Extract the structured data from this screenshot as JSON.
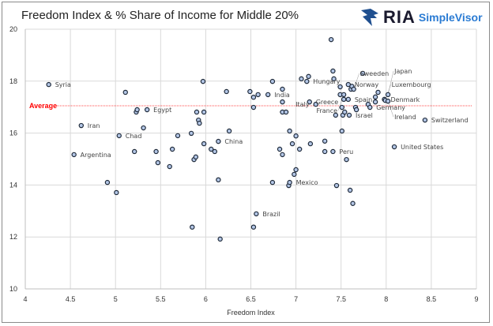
{
  "header": {
    "title": "Freedom Index & % Share of Income for Middle 20%",
    "logo_text": "RIA",
    "logo_sub": "SimpleVisor"
  },
  "chart_data": {
    "type": "scatter",
    "title": "Freedom Index & % Share of Income for Middle 20%",
    "xlabel": "Freedom Index",
    "ylabel": "",
    "xlim": [
      4,
      9
    ],
    "ylim": [
      10,
      20
    ],
    "xticks": [
      "4",
      "4.5",
      "5",
      "5.5",
      "6",
      "6.5",
      "7",
      "7.5",
      "8",
      "8.5",
      "9"
    ],
    "yticks": [
      "10",
      "12",
      "14",
      "16",
      "18",
      "20"
    ],
    "grid": true,
    "average": {
      "label": "Average",
      "value": 17.05,
      "color": "#ff0000"
    },
    "colors": {
      "point_fill": "#b4c7e7",
      "point_stroke": "#1f2a3a",
      "highlight": "#ff0000"
    },
    "points": [
      {
        "x": 4.26,
        "y": 17.87,
        "label": "Syria"
      },
      {
        "x": 4.54,
        "y": 15.17,
        "label": "Argentina"
      },
      {
        "x": 4.62,
        "y": 16.29,
        "label": "Iran"
      },
      {
        "x": 4.91,
        "y": 14.1
      },
      {
        "x": 5.01,
        "y": 13.71
      },
      {
        "x": 5.04,
        "y": 15.9,
        "label": "Chad"
      },
      {
        "x": 5.11,
        "y": 17.57
      },
      {
        "x": 5.21,
        "y": 15.29
      },
      {
        "x": 5.23,
        "y": 16.81
      },
      {
        "x": 5.24,
        "y": 16.9
      },
      {
        "x": 5.31,
        "y": 16.2
      },
      {
        "x": 5.35,
        "y": 16.9,
        "label": "Egypt"
      },
      {
        "x": 5.45,
        "y": 15.29
      },
      {
        "x": 5.47,
        "y": 14.86
      },
      {
        "x": 5.6,
        "y": 14.71
      },
      {
        "x": 5.63,
        "y": 15.38
      },
      {
        "x": 5.69,
        "y": 15.9
      },
      {
        "x": 5.84,
        "y": 15.99
      },
      {
        "x": 5.85,
        "y": 12.38
      },
      {
        "x": 5.87,
        "y": 14.98
      },
      {
        "x": 5.89,
        "y": 15.08
      },
      {
        "x": 5.9,
        "y": 16.81
      },
      {
        "x": 5.92,
        "y": 16.5
      },
      {
        "x": 5.93,
        "y": 16.38
      },
      {
        "x": 5.97,
        "y": 17.99
      },
      {
        "x": 5.98,
        "y": 16.81
      },
      {
        "x": 5.98,
        "y": 15.59
      },
      {
        "x": 6.06,
        "y": 15.38
      },
      {
        "x": 6.1,
        "y": 15.29
      },
      {
        "x": 6.14,
        "y": 15.68,
        "label": "China"
      },
      {
        "x": 6.14,
        "y": 14.2
      },
      {
        "x": 6.16,
        "y": 11.92
      },
      {
        "x": 6.23,
        "y": 17.6
      },
      {
        "x": 6.26,
        "y": 16.08
      },
      {
        "x": 6.49,
        "y": 17.6
      },
      {
        "x": 6.53,
        "y": 17.38
      },
      {
        "x": 6.53,
        "y": 16.99
      },
      {
        "x": 6.53,
        "y": 12.38
      },
      {
        "x": 6.56,
        "y": 12.89,
        "label": "Brazil"
      },
      {
        "x": 6.58,
        "y": 17.48
      },
      {
        "x": 6.69,
        "y": 17.48,
        "label": "India"
      },
      {
        "x": 6.74,
        "y": 17.99
      },
      {
        "x": 6.74,
        "y": 14.1
      },
      {
        "x": 6.82,
        "y": 15.38
      },
      {
        "x": 6.85,
        "y": 17.69
      },
      {
        "x": 6.85,
        "y": 17.2
      },
      {
        "x": 6.85,
        "y": 16.81
      },
      {
        "x": 6.85,
        "y": 15.17
      },
      {
        "x": 6.89,
        "y": 16.81
      },
      {
        "x": 6.92,
        "y": 13.98
      },
      {
        "x": 6.93,
        "y": 16.08
      },
      {
        "x": 6.93,
        "y": 14.1,
        "label": "Mexico"
      },
      {
        "x": 6.96,
        "y": 15.59
      },
      {
        "x": 6.98,
        "y": 14.41
      },
      {
        "x": 7.0,
        "y": 15.89
      },
      {
        "x": 7.0,
        "y": 14.59
      },
      {
        "x": 7.04,
        "y": 15.38
      },
      {
        "x": 7.06,
        "y": 18.09
      },
      {
        "x": 7.12,
        "y": 17.99,
        "label": "Hungary"
      },
      {
        "x": 7.14,
        "y": 18.18
      },
      {
        "x": 7.15,
        "y": 17.2,
        "label": "Greece"
      },
      {
        "x": 7.16,
        "y": 15.59
      },
      {
        "x": 7.22,
        "y": 17.11,
        "label": "Italy"
      },
      {
        "x": 7.32,
        "y": 15.69
      },
      {
        "x": 7.32,
        "y": 15.29
      },
      {
        "x": 7.39,
        "y": 19.6
      },
      {
        "x": 7.41,
        "y": 18.39
      },
      {
        "x": 7.41,
        "y": 15.29,
        "label": "Peru"
      },
      {
        "x": 7.42,
        "y": 18.09
      },
      {
        "x": 7.44,
        "y": 16.69
      },
      {
        "x": 7.45,
        "y": 13.98
      },
      {
        "x": 7.49,
        "y": 17.78
      },
      {
        "x": 7.49,
        "y": 17.48
      },
      {
        "x": 7.51,
        "y": 16.99
      },
      {
        "x": 7.51,
        "y": 16.08
      },
      {
        "x": 7.52,
        "y": 16.69
      },
      {
        "x": 7.53,
        "y": 17.3
      },
      {
        "x": 7.54,
        "y": 16.81
      },
      {
        "x": 7.56,
        "y": 14.98
      },
      {
        "x": 7.58,
        "y": 17.87,
        "label": "Norway"
      },
      {
        "x": 7.58,
        "y": 17.3,
        "label": "Spain"
      },
      {
        "x": 7.59,
        "y": 16.69,
        "label": "Israel"
      },
      {
        "x": 7.6,
        "y": 13.8
      },
      {
        "x": 7.61,
        "y": 17.69
      },
      {
        "x": 7.62,
        "y": 17.8
      },
      {
        "x": 7.63,
        "y": 13.29
      },
      {
        "x": 7.64,
        "y": 17.69,
        "label": "Sweeden"
      },
      {
        "x": 7.53,
        "y": 17.48,
        "label": "France"
      },
      {
        "x": 7.66,
        "y": 16.99
      },
      {
        "x": 7.67,
        "y": 16.9
      },
      {
        "x": 7.74,
        "y": 18.3
      },
      {
        "x": 7.8,
        "y": 17.11
      },
      {
        "x": 7.82,
        "y": 16.99,
        "label": "Germany"
      },
      {
        "x": 7.88,
        "y": 17.39
      },
      {
        "x": 7.88,
        "y": 17.2
      },
      {
        "x": 7.91,
        "y": 17.57
      },
      {
        "x": 7.98,
        "y": 17.3,
        "label": "Denmark"
      },
      {
        "x": 7.99,
        "y": 17.26,
        "label": "Luxembourg"
      },
      {
        "x": 8.02,
        "y": 17.23,
        "label": "Ireland"
      },
      {
        "x": 8.02,
        "y": 17.48,
        "label": "Japan"
      },
      {
        "x": 8.09,
        "y": 15.47,
        "label": "United States",
        "highlight": true
      },
      {
        "x": 8.43,
        "y": 16.5,
        "label": "Switzerland"
      }
    ]
  }
}
